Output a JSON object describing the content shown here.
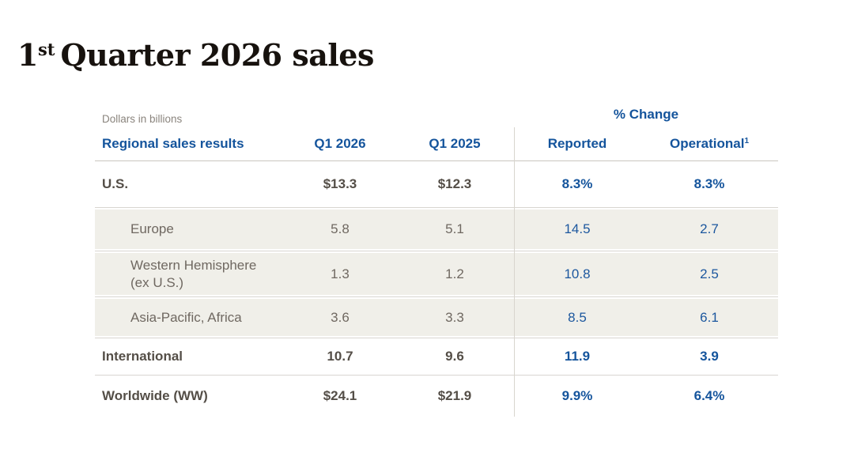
{
  "title": {
    "number": "1",
    "ordinal_suffix": "st",
    "text": "Quarter 2026 sales"
  },
  "table": {
    "unit_note": "Dollars in billions",
    "change_group_label": "% Change",
    "headers": {
      "region": "Regional sales results",
      "q1_2026": "Q1 2026",
      "q1_2025": "Q1 2025",
      "reported": "Reported",
      "operational": "Operational",
      "operational_footnote": "1"
    },
    "rows": [
      {
        "label": "U.S.",
        "q1_2026": "$13.3",
        "q1_2025": "$12.3",
        "reported": "8.3%",
        "operational": "8.3%"
      },
      {
        "label": "Europe",
        "q1_2026": "5.8",
        "q1_2025": "5.1",
        "reported": "14.5",
        "operational": "2.7"
      },
      {
        "label": "Western Hemisphere (ex U.S.)",
        "q1_2026": "1.3",
        "q1_2025": "1.2",
        "reported": "10.8",
        "operational": "2.5"
      },
      {
        "label": "Asia-Pacific, Africa",
        "q1_2026": "3.6",
        "q1_2025": "3.3",
        "reported": "8.5",
        "operational": "6.1"
      },
      {
        "label": "International",
        "q1_2026": "10.7",
        "q1_2025": "9.6",
        "reported": "11.9",
        "operational": "3.9"
      },
      {
        "label": "Worldwide (WW)",
        "q1_2026": "$24.1",
        "q1_2025": "$21.9",
        "reported": "9.9%",
        "operational": "6.4%"
      }
    ]
  },
  "colors": {
    "accent_blue": "#14549c",
    "primary_text": "#544e47",
    "secondary_text": "#6f6861",
    "shaded_row_bg": "#f0efe9",
    "rule_line": "#d8d5ce",
    "note_gray": "#8a847d",
    "title_black": "#17120e"
  },
  "chart_data": {
    "type": "table",
    "title": "1st Quarter 2026 sales",
    "unit": "Dollars in billions",
    "columns": [
      "Regional sales results",
      "Q1 2026",
      "Q1 2025",
      "% Change Reported",
      "% Change Operational"
    ],
    "rows": [
      [
        "U.S.",
        13.3,
        12.3,
        8.3,
        8.3
      ],
      [
        "Europe",
        5.8,
        5.1,
        14.5,
        2.7
      ],
      [
        "Western Hemisphere (ex U.S.)",
        1.3,
        1.2,
        10.8,
        2.5
      ],
      [
        "Asia-Pacific, Africa",
        3.6,
        3.3,
        8.5,
        6.1
      ],
      [
        "International",
        10.7,
        9.6,
        11.9,
        3.9
      ],
      [
        "Worldwide (WW)",
        24.1,
        21.9,
        9.9,
        6.4
      ]
    ],
    "row_styles": [
      "primary",
      "sub-shaded",
      "sub-shaded",
      "sub-shaded",
      "primary",
      "primary"
    ],
    "footnote_marker_on": "% Change Operational"
  }
}
